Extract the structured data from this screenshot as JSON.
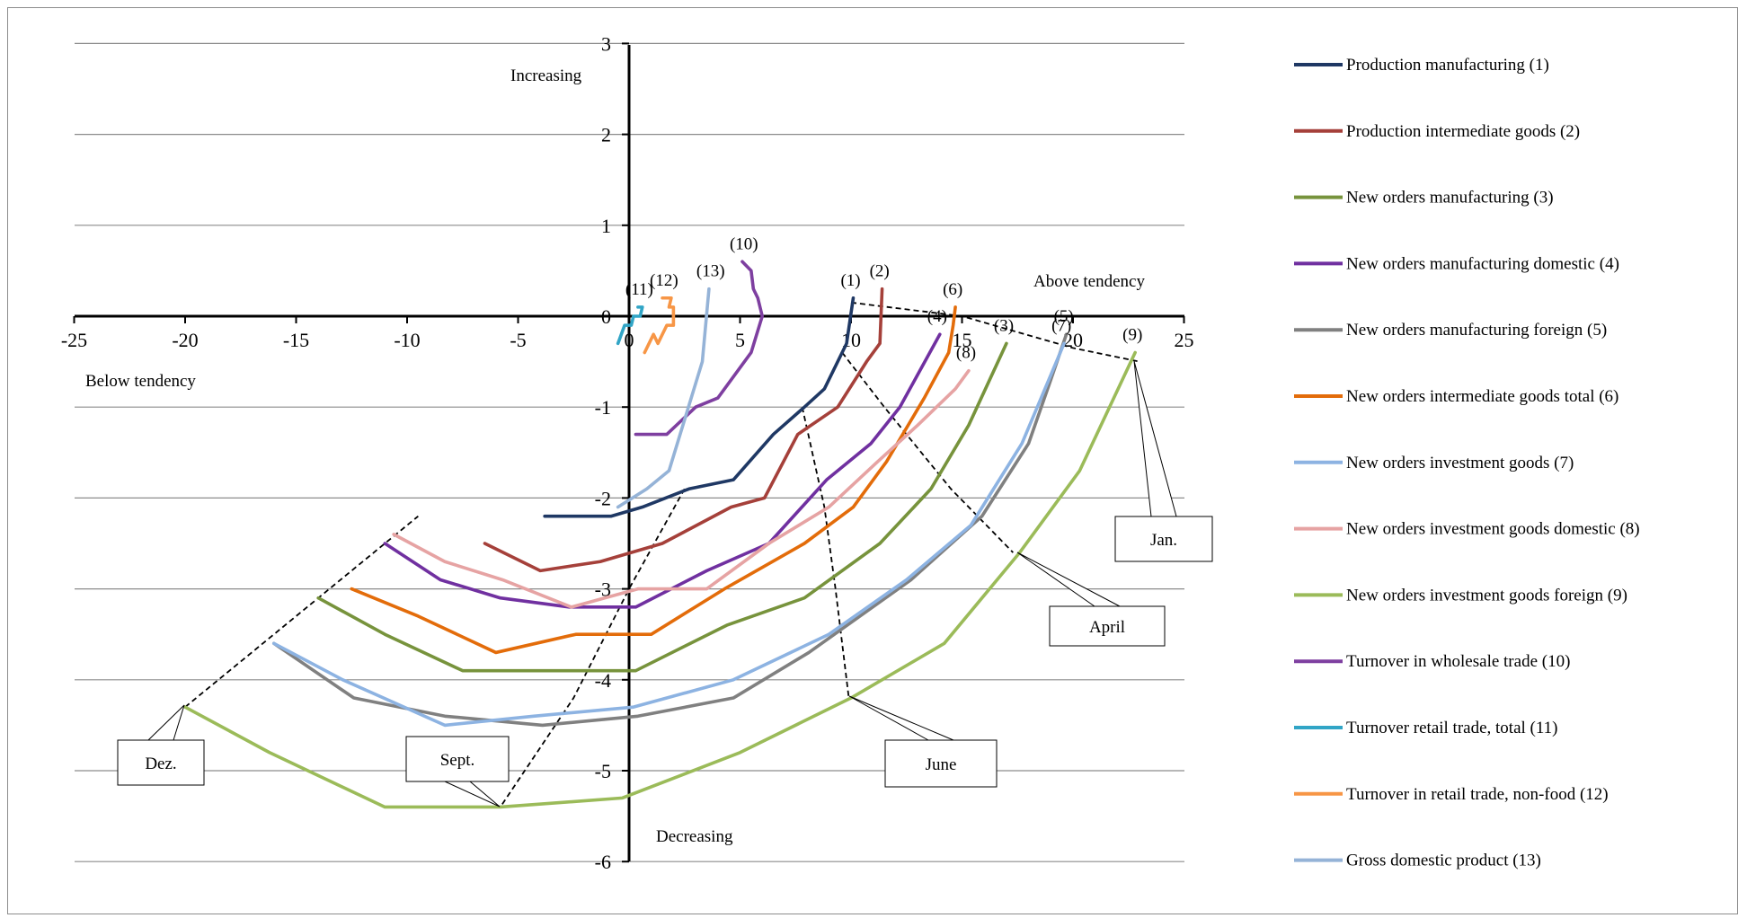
{
  "chart_data": {
    "type": "line",
    "x_ticks": [
      "-25",
      "-20",
      "-15",
      "-10",
      "-5",
      "0",
      "5",
      "10",
      "15",
      "20",
      "25"
    ],
    "y_ticks": [
      "3",
      "2",
      "1",
      "0",
      "-1",
      "-2",
      "-3",
      "-4",
      "-5",
      "-6"
    ],
    "xlim": [
      -25,
      25
    ],
    "ylim": [
      -6,
      3
    ],
    "grid": true,
    "legend_position": "right",
    "quadrant_labels": {
      "top": "Increasing",
      "bottom": "Decreasing",
      "right": "Above tendency",
      "left": "Below tendency"
    },
    "series": [
      {
        "name": "Production manufacturing (1)",
        "tag": "(1)",
        "color": "#1f3864",
        "points": [
          [
            -3.8,
            -2.2
          ],
          [
            -0.8,
            -2.2
          ],
          [
            0.6,
            -2.1
          ],
          [
            2.7,
            -1.9
          ],
          [
            4.7,
            -1.8
          ],
          [
            6.5,
            -1.3
          ],
          [
            7.9,
            -1.0
          ],
          [
            8.8,
            -0.8
          ],
          [
            9.8,
            -0.3
          ],
          [
            10.1,
            0.2
          ]
        ]
      },
      {
        "name": "Production intermediate goods (2)",
        "tag": "(2)",
        "color": "#a5403a",
        "points": [
          [
            -6.5,
            -2.5
          ],
          [
            -4,
            -2.8
          ],
          [
            -1.3,
            -2.7
          ],
          [
            1.5,
            -2.5
          ],
          [
            4.6,
            -2.1
          ],
          [
            6.1,
            -2.0
          ],
          [
            7.6,
            -1.3
          ],
          [
            9.4,
            -1.0
          ],
          [
            10.7,
            -0.5
          ],
          [
            11.3,
            -0.3
          ],
          [
            11.4,
            0.3
          ]
        ]
      },
      {
        "name": "New orders manufacturing (3)",
        "tag": "(3)",
        "color": "#77933c",
        "points": [
          [
            -14,
            -3.1
          ],
          [
            -11,
            -3.5
          ],
          [
            -7.5,
            -3.9
          ],
          [
            -3.3,
            -3.9
          ],
          [
            0.3,
            -3.9
          ],
          [
            4.4,
            -3.4
          ],
          [
            7.9,
            -3.1
          ],
          [
            11.3,
            -2.5
          ],
          [
            13.6,
            -1.9
          ],
          [
            15.3,
            -1.2
          ],
          [
            17,
            -0.3
          ]
        ]
      },
      {
        "name": "New orders manufacturing domestic (4)",
        "tag": "(4)",
        "color": "#7030a0",
        "points": [
          [
            -11,
            -2.5
          ],
          [
            -8.5,
            -2.9
          ],
          [
            -5.8,
            -3.1
          ],
          [
            -2.7,
            -3.2
          ],
          [
            0.3,
            -3.2
          ],
          [
            3.5,
            -2.8
          ],
          [
            6.3,
            -2.5
          ],
          [
            8.9,
            -1.8
          ],
          [
            10.9,
            -1.4
          ],
          [
            12.2,
            -1.0
          ],
          [
            14,
            -0.2
          ]
        ]
      },
      {
        "name": "New orders manufacturing foreign (5)",
        "tag": "(5)",
        "color": "#808080",
        "points": [
          [
            -16,
            -3.6
          ],
          [
            -12.4,
            -4.2
          ],
          [
            -8.3,
            -4.4
          ],
          [
            -3.9,
            -4.5
          ],
          [
            0.4,
            -4.4
          ],
          [
            4.7,
            -4.2
          ],
          [
            8.1,
            -3.7
          ],
          [
            12.7,
            -2.9
          ],
          [
            15.9,
            -2.2
          ],
          [
            18,
            -1.4
          ],
          [
            19,
            -0.7
          ],
          [
            19.7,
            -0.2
          ]
        ]
      },
      {
        "name": "New orders intermediate goods total (6)",
        "tag": "(6)",
        "color": "#e36c0a",
        "points": [
          [
            -12.5,
            -3.0
          ],
          [
            -9.5,
            -3.3
          ],
          [
            -6,
            -3.7
          ],
          [
            -2.4,
            -3.5
          ],
          [
            1,
            -3.5
          ],
          [
            4.3,
            -3.0
          ],
          [
            7.9,
            -2.5
          ],
          [
            10.1,
            -2.1
          ],
          [
            11.6,
            -1.6
          ],
          [
            13.3,
            -0.9
          ],
          [
            14.4,
            -0.4
          ],
          [
            14.6,
            -0.1
          ],
          [
            14.7,
            0.1
          ]
        ]
      },
      {
        "name": "New orders investment goods (7)",
        "tag": "(7)",
        "color": "#8db3e2",
        "points": [
          [
            -16,
            -3.6
          ],
          [
            -12.9,
            -4.0
          ],
          [
            -8.3,
            -4.5
          ],
          [
            -4.3,
            -4.4
          ],
          [
            0.2,
            -4.3
          ],
          [
            4.7,
            -4.0
          ],
          [
            9,
            -3.5
          ],
          [
            12.5,
            -2.9
          ],
          [
            15.4,
            -2.3
          ],
          [
            17.7,
            -1.4
          ],
          [
            19.6,
            -0.3
          ]
        ]
      },
      {
        "name": "New orders investment goods domestic (8)",
        "tag": "(8)",
        "color": "#e6a3a3",
        "points": [
          [
            -10.6,
            -2.4
          ],
          [
            -8.3,
            -2.7
          ],
          [
            -5.7,
            -2.9
          ],
          [
            -2.6,
            -3.2
          ],
          [
            0.4,
            -3.0
          ],
          [
            3.5,
            -3.0
          ],
          [
            6.3,
            -2.5
          ],
          [
            9,
            -2.1
          ],
          [
            11.2,
            -1.6
          ],
          [
            13,
            -1.2
          ],
          [
            14.7,
            -0.8
          ],
          [
            15.3,
            -0.6
          ]
        ]
      },
      {
        "name": "New orders investment goods foreign (9)",
        "tag": "(9)",
        "color": "#9bbb59",
        "points": [
          [
            -20,
            -4.3
          ],
          [
            -16.2,
            -4.8
          ],
          [
            -11,
            -5.4
          ],
          [
            -5.8,
            -5.4
          ],
          [
            -0.3,
            -5.3
          ],
          [
            5,
            -4.8
          ],
          [
            10,
            -4.2
          ],
          [
            14.2,
            -3.6
          ],
          [
            17.6,
            -2.6
          ],
          [
            20.3,
            -1.7
          ],
          [
            22.8,
            -0.4
          ]
        ]
      },
      {
        "name": "Turnover in wholesale trade (10)",
        "tag": "(10)",
        "color": "#7e3fa0",
        "points": [
          [
            0.3,
            -1.3
          ],
          [
            1.7,
            -1.3
          ],
          [
            3,
            -1.0
          ],
          [
            4,
            -0.9
          ],
          [
            5.5,
            -0.4
          ],
          [
            6,
            0.0
          ],
          [
            5.8,
            0.2
          ],
          [
            5.6,
            0.3
          ],
          [
            5.5,
            0.5
          ],
          [
            5.1,
            0.6
          ]
        ]
      },
      {
        "name": "Turnover retail trade, total (11)",
        "tag": "(11)",
        "color": "#31a5c6",
        "points": [
          [
            -0.5,
            -0.3
          ],
          [
            -0.2,
            -0.1
          ],
          [
            0.1,
            -0.1
          ],
          [
            0.2,
            0.0
          ],
          [
            0.5,
            0.0
          ],
          [
            0.6,
            0.1
          ],
          [
            0.4,
            0.1
          ]
        ]
      },
      {
        "name": "Turnover in retail trade, non-food (12)",
        "tag": "(12)",
        "color": "#f79646",
        "points": [
          [
            0.7,
            -0.4
          ],
          [
            1.1,
            -0.2
          ],
          [
            1.3,
            -0.3
          ],
          [
            1.7,
            -0.1
          ],
          [
            2,
            -0.1
          ],
          [
            2,
            0.1
          ],
          [
            1.8,
            0.1
          ],
          [
            1.9,
            0.2
          ],
          [
            1.5,
            0.2
          ]
        ]
      },
      {
        "name": "Gross domestic product (13)",
        "tag": "(13)",
        "color": "#95b3d7",
        "points": [
          [
            -0.5,
            -2.1
          ],
          [
            0.8,
            -1.9
          ],
          [
            1.8,
            -1.7
          ],
          [
            3.3,
            -0.5
          ],
          [
            3.6,
            0.3
          ]
        ]
      }
    ],
    "guide_lines": {
      "Jan.": [
        [
          10,
          0.15
        ],
        [
          15,
          0.0
        ],
        [
          20,
          -0.35
        ],
        [
          23,
          -0.5
        ]
      ],
      "April": [
        [
          9.6,
          -0.4
        ],
        [
          11.5,
          -1.0
        ],
        [
          14.5,
          -1.9
        ],
        [
          17.3,
          -2.6
        ]
      ],
      "June": [
        [
          7.8,
          -1.0
        ],
        [
          8.8,
          -2.1
        ],
        [
          9.3,
          -3.0
        ],
        [
          9.9,
          -4.2
        ]
      ],
      "Sept.": [
        [
          2.5,
          -1.9
        ],
        [
          0,
          -3.0
        ],
        [
          -2.5,
          -4.2
        ],
        [
          -5.8,
          -5.4
        ]
      ],
      "Dez.": [
        [
          -20,
          -4.3
        ],
        [
          -16.5,
          -3.6
        ],
        [
          -13.5,
          -3.0
        ],
        [
          -9.5,
          -2.2
        ]
      ]
    },
    "callouts": [
      "Jan.",
      "April",
      "June",
      "Sept.",
      "Dez."
    ]
  }
}
